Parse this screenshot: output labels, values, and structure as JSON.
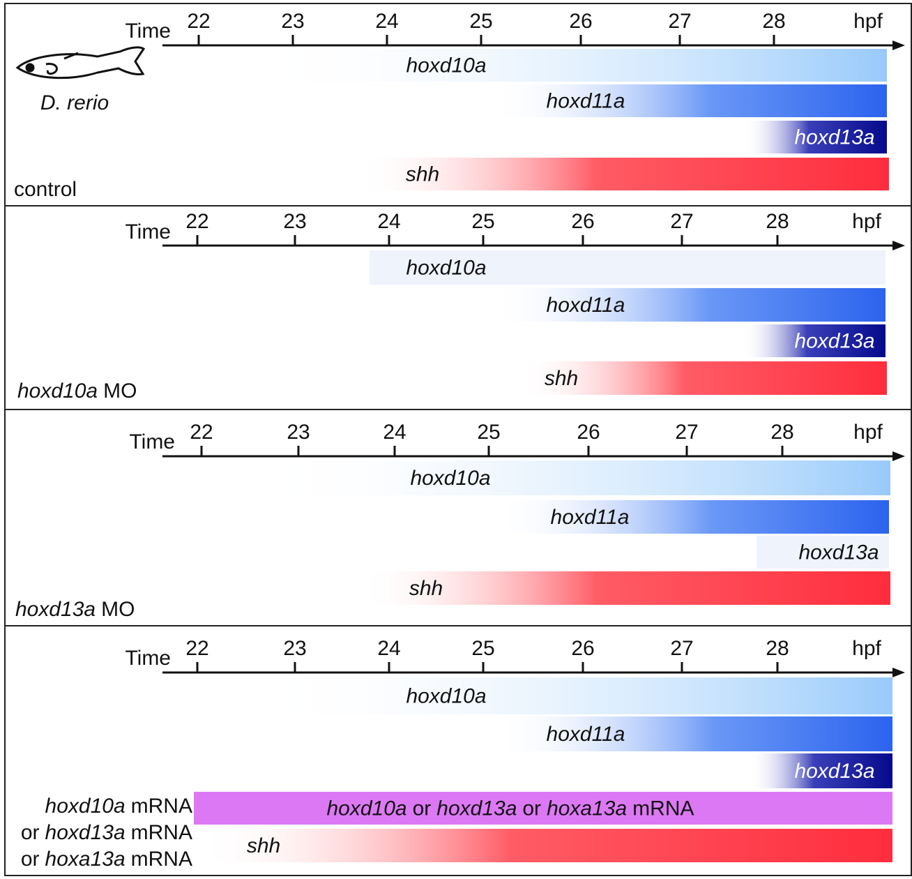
{
  "panels": [
    {
      "axis": {
        "label": "Time",
        "ticks": [
          "22",
          "23",
          "24",
          "25",
          "26",
          "27",
          "28"
        ],
        "unit": "hpf"
      },
      "species": "D. rerio",
      "bars": [
        {
          "label": [
            "hoxd10a"
          ]
        },
        {
          "label": [
            "hoxd11a"
          ]
        },
        {
          "label": [
            "hoxd13a"
          ]
        },
        {
          "label": [
            "shh"
          ]
        }
      ],
      "condition": [
        [
          "control"
        ]
      ]
    },
    {
      "axis": {
        "label": "Time",
        "ticks": [
          "22",
          "23",
          "24",
          "25",
          "26",
          "27",
          "28"
        ],
        "unit": "hpf"
      },
      "bars": [
        {
          "label": [
            "hoxd10a"
          ]
        },
        {
          "label": [
            "hoxd11a"
          ]
        },
        {
          "label": [
            "hoxd13a"
          ]
        },
        {
          "label": [
            "shh"
          ]
        }
      ],
      "condition": [
        [
          "hoxd10a",
          "MO"
        ]
      ]
    },
    {
      "axis": {
        "label": "Time",
        "ticks": [
          "22",
          "23",
          "24",
          "25",
          "26",
          "27",
          "28"
        ],
        "unit": "hpf"
      },
      "bars": [
        {
          "label": [
            "hoxd10a"
          ]
        },
        {
          "label": [
            "hoxd11a"
          ]
        },
        {
          "label": [
            "hoxd13a"
          ]
        },
        {
          "label": [
            "shh"
          ]
        }
      ],
      "condition": [
        [
          "hoxd13a",
          "MO"
        ]
      ]
    },
    {
      "axis": {
        "label": "Time",
        "ticks": [
          "22",
          "23",
          "24",
          "25",
          "26",
          "27",
          "28"
        ],
        "unit": "hpf"
      },
      "bars": [
        {
          "label": [
            "hoxd10a"
          ]
        },
        {
          "label": [
            "hoxd11a"
          ]
        },
        {
          "label": [
            "hoxd13a"
          ]
        },
        {
          "label": [
            "hoxd10a",
            "or",
            "hoxd13a",
            "or",
            "hoxa13a",
            "mRNA"
          ]
        },
        {
          "label": [
            "shh"
          ]
        }
      ],
      "condition": [
        [
          "hoxd10a",
          "mRNA"
        ],
        [
          "or",
          "hoxd13a",
          "mRNA"
        ],
        [
          "or",
          "hoxa13a",
          "mRNA"
        ]
      ]
    }
  ]
}
